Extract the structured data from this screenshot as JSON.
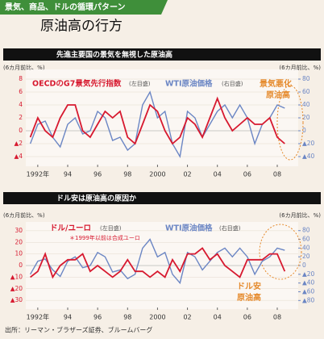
{
  "header": {
    "tag": "景気、商品、ドルの循環パターン",
    "title": "原油高の行方"
  },
  "source": "出所：リーマン・ブラザーズ証券、ブルームバーグ",
  "chart_data": [
    {
      "type": "line",
      "title": "先進主要国の景気を無視した原油高",
      "ylabel": "(6カ月前比、%)",
      "y2label": "(6カ月前比、%)",
      "x": [
        1991.5,
        1992,
        1992.5,
        1993,
        1993.5,
        1994,
        1994.5,
        1995,
        1995.5,
        1996,
        1996.5,
        1997,
        1997.5,
        1998,
        1998.5,
        1999,
        1999.5,
        2000,
        2000.5,
        2001,
        2001.5,
        2002,
        2002.5,
        2003,
        2003.5,
        2004,
        2004.5,
        2005,
        2005.5,
        2006,
        2006.5,
        2007,
        2007.5,
        2008,
        2008.5
      ],
      "xlim": [
        1991.2,
        2009.4
      ],
      "xticks": [
        {
          "value": 1992,
          "label": "1992年"
        },
        {
          "value": 1994,
          "label": "94"
        },
        {
          "value": 1996,
          "label": "96"
        },
        {
          "value": 1998,
          "label": "98"
        },
        2000,
        {
          "value": 2002,
          "label": "02"
        },
        {
          "value": 2004,
          "label": "04"
        },
        {
          "value": 2006,
          "label": "06"
        },
        {
          "value": 2008,
          "label": "08"
        }
      ],
      "ylim": [
        -4.5,
        8.5
      ],
      "yticks": [
        8,
        6,
        4,
        2,
        0,
        {
          "value": -2,
          "label": "▲2"
        },
        {
          "value": -4,
          "label": "▲4"
        }
      ],
      "y2lim": [
        -45,
        85
      ],
      "y2ticks": [
        80,
        60,
        40,
        20,
        0,
        {
          "value": -20,
          "label": "▲20"
        },
        {
          "value": -40,
          "label": "▲40"
        }
      ],
      "series": [
        {
          "name": "OECDのG7景気先行指数",
          "color": "#d7192f",
          "values": [
            -1,
            2,
            0,
            -1,
            2,
            4,
            4,
            0,
            -1,
            1,
            3,
            2,
            3,
            -1,
            -2,
            1,
            4,
            3,
            0,
            -2,
            -1,
            2,
            1,
            -1,
            2,
            5,
            2,
            0,
            1,
            2,
            1,
            1,
            2,
            -1,
            -2
          ]
        },
        {
          "name": "WTI原油価格",
          "color": "#6b86c4",
          "axis": "y2",
          "values": [
            -20,
            10,
            15,
            -10,
            -25,
            10,
            20,
            -5,
            0,
            30,
            20,
            -15,
            -10,
            -30,
            -20,
            40,
            60,
            20,
            30,
            -20,
            -40,
            30,
            20,
            -10,
            10,
            30,
            40,
            20,
            40,
            20,
            -20,
            10,
            20,
            40,
            35
          ]
        }
      ],
      "annotations": [
        "(左目盛)",
        "(右目盛)",
        "景気悪化",
        "原油高"
      ]
    },
    {
      "type": "line",
      "title": "ドル安は原油高の原因か",
      "ylabel": "(6カ月前比、%)",
      "y2label": "(6カ月前比、%)",
      "x": [
        1991.5,
        1992,
        1992.5,
        1993,
        1993.5,
        1994,
        1994.5,
        1995,
        1995.5,
        1996,
        1996.5,
        1997,
        1997.5,
        1998,
        1998.5,
        1999,
        1999.5,
        2000,
        2000.5,
        2001,
        2001.5,
        2002,
        2002.5,
        2003,
        2003.5,
        2004,
        2004.5,
        2005,
        2005.5,
        2006,
        2006.5,
        2007,
        2007.5,
        2008,
        2008.5
      ],
      "xlim": [
        1991.2,
        2009.4
      ],
      "xticks": [
        {
          "value": 1992,
          "label": "1992年"
        },
        {
          "value": 1994,
          "label": "94"
        },
        {
          "value": 1996,
          "label": "96"
        },
        {
          "value": 1998,
          "label": "98"
        },
        2000,
        {
          "value": 2002,
          "label": "02"
        },
        {
          "value": 2004,
          "label": "04"
        },
        {
          "value": 2006,
          "label": "06"
        },
        {
          "value": 2008,
          "label": "08"
        }
      ],
      "ylim": [
        -32,
        32
      ],
      "yticks": [
        30,
        20,
        10,
        0,
        {
          "value": -10,
          "label": "▲10"
        },
        {
          "value": -20,
          "label": "▲20"
        },
        {
          "value": -30,
          "label": "▲30"
        }
      ],
      "y2lim": [
        -85,
        85
      ],
      "y2ticks": [
        80,
        60,
        40,
        20,
        0,
        {
          "value": -20,
          "label": "▲20"
        },
        {
          "value": -40,
          "label": "▲40"
        },
        {
          "value": -60,
          "label": "▲60"
        },
        {
          "value": -80,
          "label": "▲80"
        }
      ],
      "series": [
        {
          "name": "ドル/ユーロ",
          "color": "#d7192f",
          "values": [
            -10,
            -5,
            10,
            -10,
            0,
            5,
            5,
            10,
            -5,
            0,
            -5,
            -10,
            -5,
            5,
            -5,
            -5,
            -10,
            -5,
            -10,
            5,
            -5,
            10,
            10,
            15,
            5,
            10,
            0,
            -5,
            -10,
            5,
            5,
            5,
            10,
            10,
            -5
          ]
        },
        {
          "name": "WTI原油価格",
          "color": "#6b86c4",
          "axis": "y2",
          "values": [
            -20,
            10,
            15,
            -10,
            -25,
            10,
            20,
            -5,
            0,
            30,
            20,
            -15,
            -10,
            -30,
            -20,
            40,
            60,
            20,
            30,
            -20,
            -40,
            30,
            20,
            -10,
            10,
            30,
            40,
            20,
            40,
            20,
            -20,
            10,
            20,
            40,
            35
          ]
        }
      ],
      "annotations": [
        "(左目盛)",
        "＊1999年以前は合成ユーロ",
        "(右目盛)",
        "ドル安",
        "原油高"
      ]
    }
  ]
}
